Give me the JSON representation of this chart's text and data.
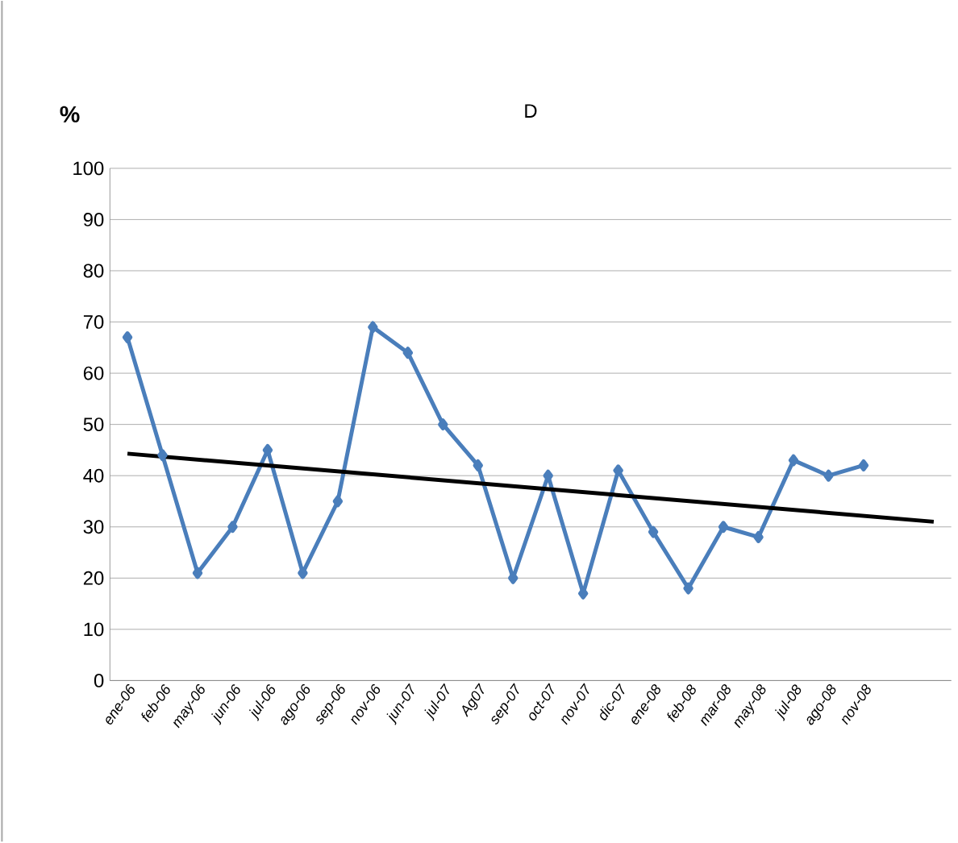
{
  "chart_data": {
    "type": "line",
    "title": "D",
    "ylabel": "%",
    "categories": [
      "ene-06",
      "feb-06",
      "may-06",
      "jun-06",
      "jul-06",
      "ago-06",
      "sep-06",
      "nov-06",
      "jun-07",
      "jul-07",
      "Ag07",
      "sep-07",
      "oct-07",
      "nov-07",
      "dic-07",
      "ene-08",
      "feb-08",
      "mar-08",
      "may-08",
      "jul-08",
      "ago-08",
      "nov-08",
      null,
      null
    ],
    "series": [
      {
        "color": "#4a7ebb",
        "marker": "diamond",
        "values": [
          67,
          44,
          21,
          30,
          45,
          21,
          35,
          69,
          64,
          50,
          42,
          20,
          40,
          17,
          41,
          29,
          18,
          30,
          28,
          43,
          40,
          42,
          null,
          null
        ]
      },
      {
        "type": "line",
        "color": "#000000",
        "marker": "none",
        "values": [
          44.3,
          null,
          null,
          null,
          null,
          null,
          null,
          null,
          null,
          null,
          null,
          null,
          null,
          null,
          null,
          null,
          null,
          null,
          null,
          null,
          null,
          null,
          null,
          31
        ]
      }
    ],
    "ylim": [
      0,
      100
    ],
    "yticks": [
      0,
      10,
      20,
      30,
      40,
      50,
      60,
      70,
      80,
      90,
      100
    ],
    "grid": "y"
  }
}
